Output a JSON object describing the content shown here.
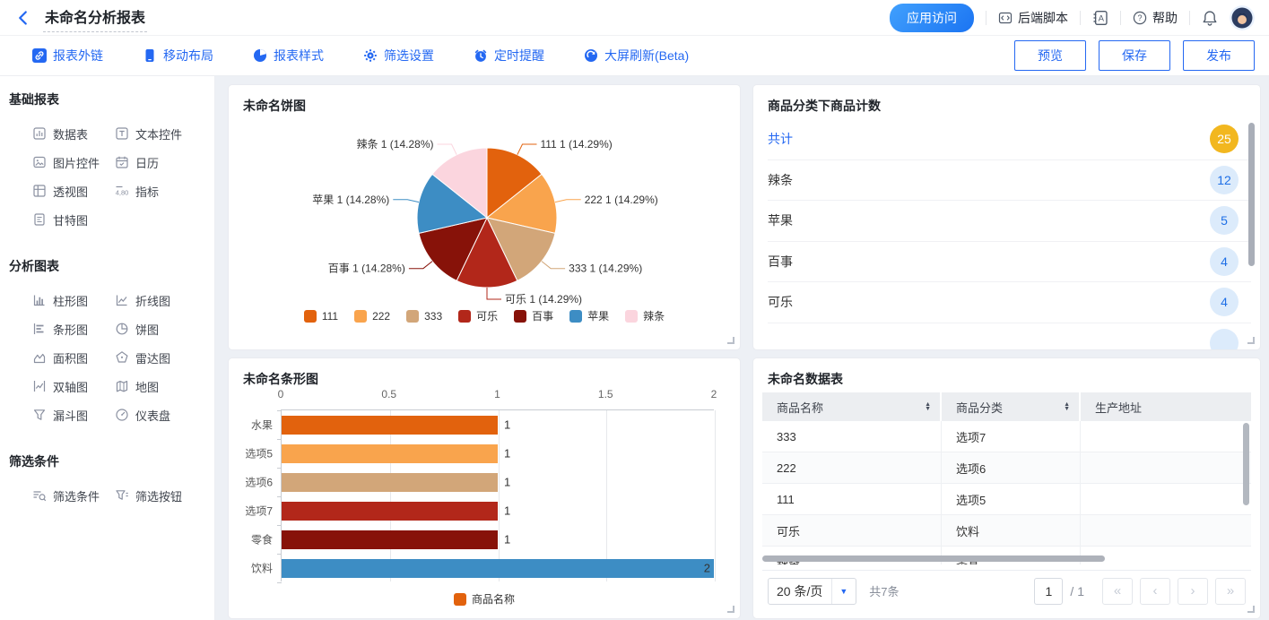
{
  "header": {
    "title": "未命名分析报表",
    "app_access": "应用访问",
    "backend_script": "后端脚本",
    "help": "帮助"
  },
  "toolbar": {
    "items": [
      {
        "label": "报表外链",
        "icon": "report-link"
      },
      {
        "label": "移动布局",
        "icon": "mobile-layout"
      },
      {
        "label": "报表样式",
        "icon": "report-style"
      },
      {
        "label": "筛选设置",
        "icon": "filter-gear"
      },
      {
        "label": "定时提醒",
        "icon": "alarm"
      },
      {
        "label": "大屏刷新(Beta)",
        "icon": "refresh"
      }
    ],
    "actions": [
      {
        "label": "预览"
      },
      {
        "label": "保存"
      },
      {
        "label": "发布"
      }
    ]
  },
  "sidebar": {
    "sections": [
      {
        "title": "基础报表",
        "items": [
          {
            "label": "数据表",
            "icon": "table-chart"
          },
          {
            "label": "文本控件",
            "icon": "text-widget"
          },
          {
            "label": "图片控件",
            "icon": "image-widget"
          },
          {
            "label": "日历",
            "icon": "calendar"
          },
          {
            "label": "透视图",
            "icon": "pivot-table"
          },
          {
            "label": "指标",
            "icon": "metric"
          },
          {
            "label": "甘特图",
            "icon": "gantt"
          }
        ]
      },
      {
        "title": "分析图表",
        "items": [
          {
            "label": "柱形图",
            "icon": "column-chart"
          },
          {
            "label": "折线图",
            "icon": "line-chart"
          },
          {
            "label": "条形图",
            "icon": "bar-chart"
          },
          {
            "label": "饼图",
            "icon": "pie-chart"
          },
          {
            "label": "面积图",
            "icon": "area-chart"
          },
          {
            "label": "雷达图",
            "icon": "radar-chart"
          },
          {
            "label": "双轴图",
            "icon": "dual-axis-chart"
          },
          {
            "label": "地图",
            "icon": "map"
          },
          {
            "label": "漏斗图",
            "icon": "funnel-chart"
          },
          {
            "label": "仪表盘",
            "icon": "gauge-chart"
          }
        ]
      },
      {
        "title": "筛选条件",
        "items": [
          {
            "label": "筛选条件",
            "icon": "filter-condition"
          },
          {
            "label": "筛选按钮",
            "icon": "filter-button"
          }
        ]
      }
    ]
  },
  "panels": {
    "counts": {
      "title": "商品分类下商品计数",
      "rows": [
        {
          "label": "共计",
          "value": "25",
          "total": true
        },
        {
          "label": "辣条",
          "value": "12"
        },
        {
          "label": "苹果",
          "value": "5"
        },
        {
          "label": "百事",
          "value": "4"
        },
        {
          "label": "可乐",
          "value": "4"
        }
      ],
      "badge_total_bg": "#F2B71F",
      "badge_total_text": "#FFFFFF",
      "badge_bg": "#DCEBFB",
      "badge_text": "#1E6FE6"
    },
    "table": {
      "title": "未命名数据表",
      "columns": [
        {
          "label": "商品名称",
          "sortable": true
        },
        {
          "label": "商品分类",
          "sortable": true
        },
        {
          "label": "生产地址",
          "sortable": false
        }
      ],
      "rows": [
        [
          "333",
          "选项7",
          ""
        ],
        [
          "222",
          "选项6",
          ""
        ],
        [
          "111",
          "选项5",
          ""
        ],
        [
          "可乐",
          "饮料",
          ""
        ],
        [
          "辣条",
          "零食",
          ""
        ]
      ],
      "pagination": {
        "page_size": "20 条/页",
        "total": "共7条",
        "page": "1",
        "total_pages": "/ 1"
      }
    }
  },
  "chart_data": [
    {
      "type": "pie",
      "title": "未命名饼图",
      "series": [
        {
          "name": "111",
          "value": 1,
          "percent": "14.29%",
          "color": "#E2620D"
        },
        {
          "name": "222",
          "value": 1,
          "percent": "14.29%",
          "color": "#F9A44D"
        },
        {
          "name": "333",
          "value": 1,
          "percent": "14.29%",
          "color": "#D2A679"
        },
        {
          "name": "可乐",
          "value": 1,
          "percent": "14.29%",
          "color": "#B2271A"
        },
        {
          "name": "百事",
          "value": 1,
          "percent": "14.28%",
          "color": "#871209"
        },
        {
          "name": "苹果",
          "value": 1,
          "percent": "14.28%",
          "color": "#3D8DC4"
        },
        {
          "name": "辣条",
          "value": 1,
          "percent": "14.28%",
          "color": "#FBD5DE"
        }
      ],
      "label_format": "name value (percent)",
      "legend_position": "bottom"
    },
    {
      "type": "bar",
      "orientation": "horizontal",
      "title": "未命名条形图",
      "categories": [
        "水果",
        "选项5",
        "选项6",
        "选项7",
        "零食",
        "饮料"
      ],
      "values": [
        1,
        1,
        1,
        1,
        1,
        2
      ],
      "colors": [
        "#E2620D",
        "#F9A44D",
        "#D2A679",
        "#B2271A",
        "#871209",
        "#3D8DC4"
      ],
      "xlim": [
        0,
        2
      ],
      "x_ticks": [
        "0",
        "0.5",
        "1",
        "1.5",
        "2"
      ],
      "grid": true,
      "legend": [
        {
          "label": "商品名称",
          "color": "#E2620D"
        }
      ],
      "legend_position": "bottom"
    }
  ],
  "theme": {
    "accent": "#2468F2",
    "canvas_bg": "#EDF0F5"
  }
}
